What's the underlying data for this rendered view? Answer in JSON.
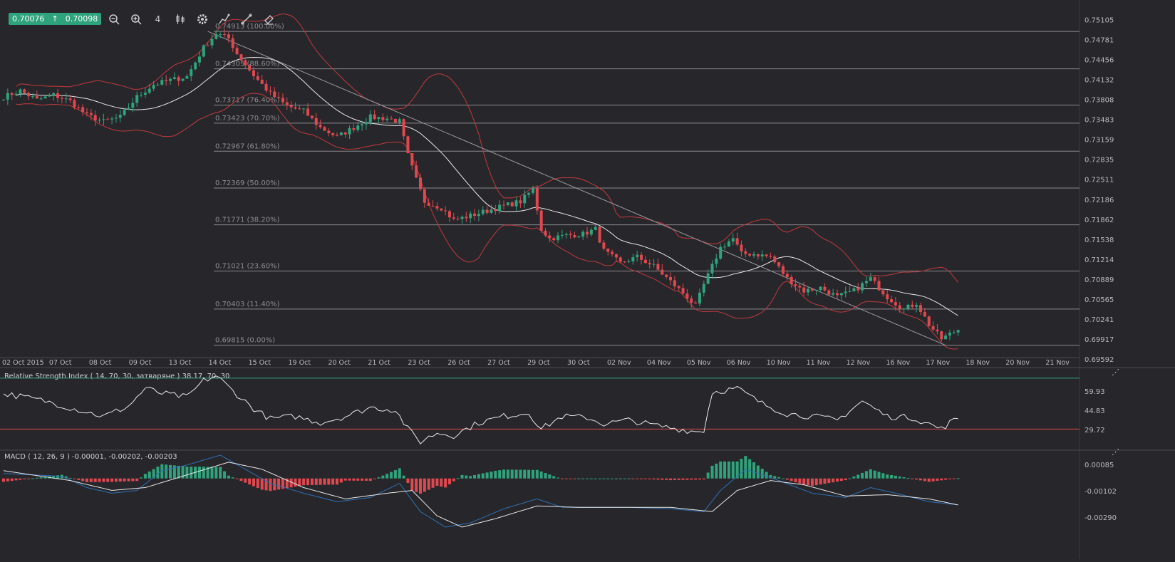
{
  "quote": {
    "bid": "0.70076",
    "arrow": "↑",
    "ask": "0.70098",
    "color": "#2fa37b"
  },
  "toolbar": [
    {
      "name": "zoom-out-icon"
    },
    {
      "name": "zoom-in-icon"
    },
    {
      "name": "timeframe-icon",
      "label": "4"
    },
    {
      "name": "candle-type-icon"
    },
    {
      "name": "gear-icon"
    },
    {
      "name": "indicator-icon"
    },
    {
      "name": "drawing-tools-icon"
    },
    {
      "name": "eraser-icon"
    }
  ],
  "colors": {
    "up": "#2fa37b",
    "down": "#e0484f",
    "band": "#c0393f",
    "grid": "#8a8a90",
    "macd": "#2f6fb5",
    "signal": "#e8e8ea",
    "bg": "#27272b"
  },
  "chart_data": [
    {
      "type": "candlestick",
      "title": "",
      "price_axis": [
        "0.75105",
        "0.74781",
        "0.74456",
        "0.74132",
        "0.73808",
        "0.73483",
        "0.73159",
        "0.72835",
        "0.72511",
        "0.72186",
        "0.71862",
        "0.71538",
        "0.71214",
        "0.70889",
        "0.70565",
        "0.70241",
        "0.69917",
        "0.69592"
      ],
      "ylim": [
        0.69592,
        0.75105
      ],
      "x_labels": [
        "02 Oct 2015",
        "07 Oct",
        "08 Oct",
        "09 Oct",
        "13 Oct",
        "14 Oct",
        "15 Oct",
        "19 Oct",
        "20 Oct",
        "21 Oct",
        "23 Oct",
        "26 Oct",
        "27 Oct",
        "29 Oct",
        "30 Oct",
        "02 Nov",
        "04 Nov",
        "05 Nov",
        "06 Nov",
        "10 Nov",
        "11 Nov",
        "12 Nov",
        "16 Nov",
        "17 Nov",
        "18 Nov",
        "20 Nov",
        "21 Nov"
      ],
      "fib_levels": [
        {
          "price": 0.74913,
          "label": "0.74913 (100.00%)"
        },
        {
          "price": 0.74305,
          "label": "0.74305 (88.60%)"
        },
        {
          "price": 0.73717,
          "label": "0.73717 (76.40%)"
        },
        {
          "price": 0.73423,
          "label": "0.73423 (70.70%)"
        },
        {
          "price": 0.72967,
          "label": "0.72967 (61.80%)"
        },
        {
          "price": 0.72369,
          "label": "0.72369 (50.00%)"
        },
        {
          "price": 0.71771,
          "label": "0.71771 (38.20%)"
        },
        {
          "price": 0.71021,
          "label": "0.71021 (23.60%)"
        },
        {
          "price": 0.70403,
          "label": "0.70403 (11.40%)"
        },
        {
          "price": 0.69815,
          "label": "0.69815 (0.00%)"
        }
      ],
      "anchors": [
        {
          "i": 0,
          "p": 0.7385
        },
        {
          "i": 4,
          "p": 0.7395
        },
        {
          "i": 8,
          "p": 0.738
        },
        {
          "i": 12,
          "p": 0.7388
        },
        {
          "i": 16,
          "p": 0.7378
        },
        {
          "i": 20,
          "p": 0.7355
        },
        {
          "i": 24,
          "p": 0.7345
        },
        {
          "i": 28,
          "p": 0.7352
        },
        {
          "i": 32,
          "p": 0.7385
        },
        {
          "i": 36,
          "p": 0.7405
        },
        {
          "i": 40,
          "p": 0.7412
        },
        {
          "i": 44,
          "p": 0.7418
        },
        {
          "i": 48,
          "p": 0.7465
        },
        {
          "i": 51,
          "p": 0.7488
        },
        {
          "i": 54,
          "p": 0.748
        },
        {
          "i": 56,
          "p": 0.7455
        },
        {
          "i": 60,
          "p": 0.742
        },
        {
          "i": 64,
          "p": 0.739
        },
        {
          "i": 68,
          "p": 0.737
        },
        {
          "i": 72,
          "p": 0.7362
        },
        {
          "i": 76,
          "p": 0.7335
        },
        {
          "i": 80,
          "p": 0.732
        },
        {
          "i": 84,
          "p": 0.7335
        },
        {
          "i": 88,
          "p": 0.7352
        },
        {
          "i": 92,
          "p": 0.735
        },
        {
          "i": 95,
          "p": 0.7345
        },
        {
          "i": 97,
          "p": 0.729
        },
        {
          "i": 99,
          "p": 0.725
        },
        {
          "i": 101,
          "p": 0.7215
        },
        {
          "i": 105,
          "p": 0.7205
        },
        {
          "i": 108,
          "p": 0.7185
        },
        {
          "i": 112,
          "p": 0.7192
        },
        {
          "i": 116,
          "p": 0.72
        },
        {
          "i": 120,
          "p": 0.7208
        },
        {
          "i": 124,
          "p": 0.7215
        },
        {
          "i": 127,
          "p": 0.7235
        },
        {
          "i": 129,
          "p": 0.717
        },
        {
          "i": 131,
          "p": 0.7155
        },
        {
          "i": 135,
          "p": 0.716
        },
        {
          "i": 139,
          "p": 0.7162
        },
        {
          "i": 142,
          "p": 0.717
        },
        {
          "i": 144,
          "p": 0.7135
        },
        {
          "i": 148,
          "p": 0.7115
        },
        {
          "i": 152,
          "p": 0.7125
        },
        {
          "i": 156,
          "p": 0.711
        },
        {
          "i": 160,
          "p": 0.7085
        },
        {
          "i": 164,
          "p": 0.706
        },
        {
          "i": 166,
          "p": 0.7045
        },
        {
          "i": 168,
          "p": 0.708
        },
        {
          "i": 172,
          "p": 0.714
        },
        {
          "i": 175,
          "p": 0.7155
        },
        {
          "i": 177,
          "p": 0.713
        },
        {
          "i": 180,
          "p": 0.713
        },
        {
          "i": 184,
          "p": 0.7125
        },
        {
          "i": 188,
          "p": 0.709
        },
        {
          "i": 192,
          "p": 0.707
        },
        {
          "i": 196,
          "p": 0.7075
        },
        {
          "i": 200,
          "p": 0.706
        },
        {
          "i": 204,
          "p": 0.707
        },
        {
          "i": 208,
          "p": 0.709
        },
        {
          "i": 212,
          "p": 0.706
        },
        {
          "i": 216,
          "p": 0.704
        },
        {
          "i": 219,
          "p": 0.705
        },
        {
          "i": 222,
          "p": 0.7015
        },
        {
          "i": 225,
          "p": 0.6992
        },
        {
          "i": 229,
          "p": 0.7007
        }
      ],
      "trendline": [
        {
          "i": 49,
          "p": 0.74913
        },
        {
          "i": 226,
          "p": 0.69815
        }
      ]
    },
    {
      "type": "line",
      "name": "Relative Strength Index",
      "title": "Relative Strength Index ( 14, 70, 30, затваряне ) 38.17, 70, 30",
      "y_axis": [
        "59.93",
        "44.83",
        "29.72"
      ],
      "ylim": [
        14.5,
        75.0
      ],
      "levels": [
        70,
        30
      ],
      "anchors": [
        {
          "i": 0,
          "v": 58
        },
        {
          "i": 10,
          "v": 52
        },
        {
          "i": 18,
          "v": 45
        },
        {
          "i": 24,
          "v": 40
        },
        {
          "i": 30,
          "v": 48
        },
        {
          "i": 34,
          "v": 62
        },
        {
          "i": 38,
          "v": 58
        },
        {
          "i": 44,
          "v": 55
        },
        {
          "i": 48,
          "v": 68
        },
        {
          "i": 51,
          "v": 72
        },
        {
          "i": 55,
          "v": 60
        },
        {
          "i": 60,
          "v": 46
        },
        {
          "i": 64,
          "v": 38
        },
        {
          "i": 70,
          "v": 40
        },
        {
          "i": 76,
          "v": 35
        },
        {
          "i": 82,
          "v": 40
        },
        {
          "i": 88,
          "v": 47
        },
        {
          "i": 94,
          "v": 45
        },
        {
          "i": 97,
          "v": 30
        },
        {
          "i": 100,
          "v": 20
        },
        {
          "i": 104,
          "v": 27
        },
        {
          "i": 108,
          "v": 25
        },
        {
          "i": 114,
          "v": 35
        },
        {
          "i": 120,
          "v": 40
        },
        {
          "i": 126,
          "v": 43
        },
        {
          "i": 129,
          "v": 30
        },
        {
          "i": 134,
          "v": 40
        },
        {
          "i": 140,
          "v": 39
        },
        {
          "i": 144,
          "v": 34
        },
        {
          "i": 150,
          "v": 37
        },
        {
          "i": 156,
          "v": 33
        },
        {
          "i": 162,
          "v": 30
        },
        {
          "i": 166,
          "v": 28
        },
        {
          "i": 168,
          "v": 29
        },
        {
          "i": 170,
          "v": 59
        },
        {
          "i": 176,
          "v": 62
        },
        {
          "i": 182,
          "v": 50
        },
        {
          "i": 188,
          "v": 42
        },
        {
          "i": 194,
          "v": 40
        },
        {
          "i": 200,
          "v": 37
        },
        {
          "i": 206,
          "v": 52
        },
        {
          "i": 212,
          "v": 40
        },
        {
          "i": 218,
          "v": 39
        },
        {
          "i": 222,
          "v": 34
        },
        {
          "i": 225,
          "v": 30
        },
        {
          "i": 227,
          "v": 35
        },
        {
          "i": 229,
          "v": 38.17
        }
      ]
    },
    {
      "type": "bar+line",
      "name": "MACD",
      "title": "MACD ( 12, 26, 9 ) -0.00001, -0.00202, -0.00203",
      "y_axis": [
        "0.00085",
        "-0.00102",
        "-0.00290"
      ],
      "ylim": [
        -0.00385,
        0.00175
      ],
      "series": [
        {
          "name": "MACD",
          "anchors": [
            {
              "i": 0,
              "v": 0.0002
            },
            {
              "i": 14,
              "v": 0.0
            },
            {
              "i": 20,
              "v": -0.0008
            },
            {
              "i": 26,
              "v": -0.0012
            },
            {
              "i": 32,
              "v": -0.001
            },
            {
              "i": 38,
              "v": 0.0004
            },
            {
              "i": 44,
              "v": 0.0008
            },
            {
              "i": 52,
              "v": 0.0015
            },
            {
              "i": 58,
              "v": 0.0005
            },
            {
              "i": 64,
              "v": -0.0005
            },
            {
              "i": 72,
              "v": -0.0012
            },
            {
              "i": 80,
              "v": -0.0018
            },
            {
              "i": 88,
              "v": -0.0015
            },
            {
              "i": 95,
              "v": -0.0005
            },
            {
              "i": 100,
              "v": -0.0025
            },
            {
              "i": 106,
              "v": -0.0036
            },
            {
              "i": 112,
              "v": -0.0033
            },
            {
              "i": 120,
              "v": -0.0023
            },
            {
              "i": 128,
              "v": -0.0016
            },
            {
              "i": 134,
              "v": -0.0022
            },
            {
              "i": 140,
              "v": -0.0022
            },
            {
              "i": 150,
              "v": -0.0022
            },
            {
              "i": 160,
              "v": -0.0023
            },
            {
              "i": 168,
              "v": -0.0025
            },
            {
              "i": 172,
              "v": -0.001
            },
            {
              "i": 178,
              "v": 0.0005
            },
            {
              "i": 186,
              "v": -0.0003
            },
            {
              "i": 194,
              "v": -0.0012
            },
            {
              "i": 202,
              "v": -0.0015
            },
            {
              "i": 208,
              "v": -0.0008
            },
            {
              "i": 214,
              "v": -0.0012
            },
            {
              "i": 222,
              "v": -0.0018
            },
            {
              "i": 229,
              "v": -0.00202
            }
          ]
        },
        {
          "name": "Signal",
          "anchors": [
            {
              "i": 0,
              "v": 0.0004
            },
            {
              "i": 16,
              "v": -0.0003
            },
            {
              "i": 26,
              "v": -0.001
            },
            {
              "i": 34,
              "v": -0.0008
            },
            {
              "i": 44,
              "v": 0.0001
            },
            {
              "i": 54,
              "v": 0.001
            },
            {
              "i": 62,
              "v": 0.0005
            },
            {
              "i": 72,
              "v": -0.0008
            },
            {
              "i": 82,
              "v": -0.0016
            },
            {
              "i": 92,
              "v": -0.0012
            },
            {
              "i": 98,
              "v": -0.001
            },
            {
              "i": 104,
              "v": -0.0028
            },
            {
              "i": 110,
              "v": -0.0036
            },
            {
              "i": 118,
              "v": -0.003
            },
            {
              "i": 128,
              "v": -0.0021
            },
            {
              "i": 138,
              "v": -0.0022
            },
            {
              "i": 150,
              "v": -0.0022
            },
            {
              "i": 160,
              "v": -0.0022
            },
            {
              "i": 170,
              "v": -0.0025
            },
            {
              "i": 176,
              "v": -0.001
            },
            {
              "i": 184,
              "v": -0.0003
            },
            {
              "i": 192,
              "v": -0.0006
            },
            {
              "i": 202,
              "v": -0.0014
            },
            {
              "i": 212,
              "v": -0.0013
            },
            {
              "i": 222,
              "v": -0.0016
            },
            {
              "i": 229,
              "v": -0.00203
            }
          ]
        }
      ]
    }
  ]
}
